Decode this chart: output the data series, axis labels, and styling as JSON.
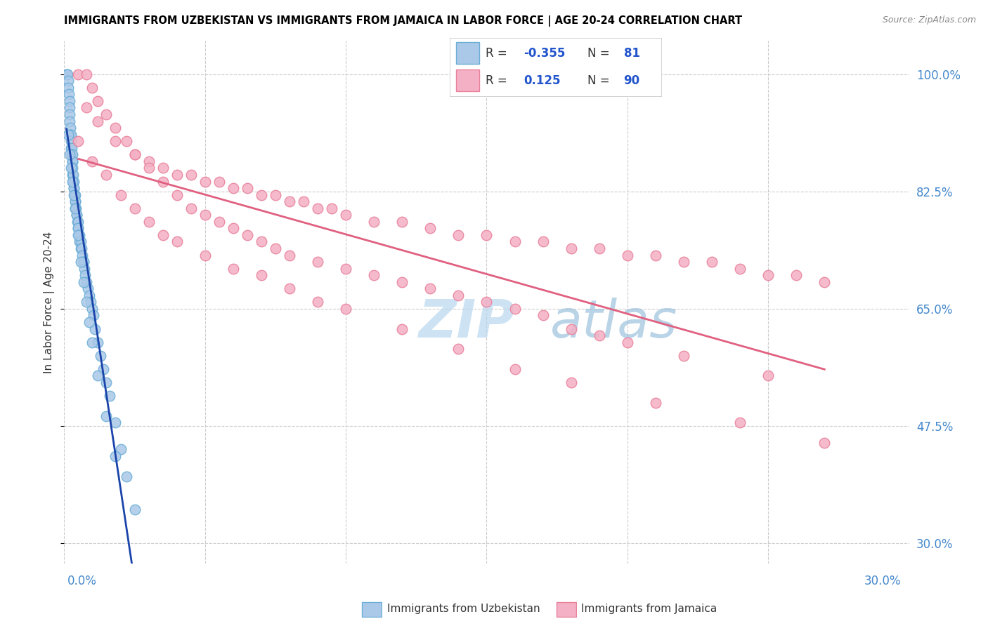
{
  "title": "IMMIGRANTS FROM UZBEKISTAN VS IMMIGRANTS FROM JAMAICA IN LABOR FORCE | AGE 20-24 CORRELATION CHART",
  "source": "Source: ZipAtlas.com",
  "ylabel_label": "In Labor Force | Age 20-24",
  "ylabel_ticks": [
    30.0,
    47.5,
    65.0,
    82.5,
    100.0
  ],
  "xlim": [
    0.0,
    30.0
  ],
  "ylim": [
    27.0,
    105.0
  ],
  "uzbekistan_color": "#aac8e8",
  "uzbekistan_edge": "#6aaed6",
  "jamaica_color": "#f4b0c4",
  "jamaica_edge": "#e8809a",
  "trend_uzbekistan_color": "#1a44aa",
  "trend_dashed_color": "#b0b8c8",
  "trend_jamaica_color": "#e06080",
  "watermark_color": "#daeef8",
  "uzbekistan_x": [
    0.08,
    0.1,
    0.12,
    0.14,
    0.15,
    0.16,
    0.18,
    0.18,
    0.2,
    0.2,
    0.22,
    0.22,
    0.24,
    0.25,
    0.25,
    0.26,
    0.27,
    0.28,
    0.28,
    0.3,
    0.3,
    0.3,
    0.32,
    0.32,
    0.33,
    0.35,
    0.35,
    0.36,
    0.38,
    0.38,
    0.4,
    0.4,
    0.42,
    0.44,
    0.45,
    0.46,
    0.48,
    0.5,
    0.5,
    0.52,
    0.55,
    0.55,
    0.58,
    0.6,
    0.62,
    0.65,
    0.68,
    0.7,
    0.72,
    0.75,
    0.8,
    0.85,
    0.9,
    0.95,
    1.0,
    1.05,
    1.1,
    1.2,
    1.3,
    1.4,
    1.5,
    1.6,
    1.8,
    2.0,
    2.2,
    2.5,
    0.15,
    0.2,
    0.25,
    0.3,
    0.35,
    0.4,
    0.5,
    0.6,
    0.7,
    0.8,
    0.9,
    1.0,
    1.2,
    1.5,
    1.8
  ],
  "uzbekistan_y": [
    100,
    100,
    100,
    99,
    98,
    97,
    96,
    95,
    94,
    93,
    92,
    91,
    91,
    90,
    89,
    89,
    88,
    88,
    87,
    87,
    86,
    85,
    85,
    84,
    84,
    83,
    83,
    82,
    82,
    81,
    81,
    80,
    80,
    79,
    79,
    78,
    78,
    77,
    77,
    76,
    76,
    75,
    75,
    74,
    74,
    73,
    72,
    72,
    71,
    70,
    69,
    68,
    67,
    66,
    65,
    64,
    62,
    60,
    58,
    56,
    54,
    52,
    48,
    44,
    40,
    35,
    91,
    88,
    86,
    84,
    82,
    80,
    76,
    72,
    69,
    66,
    63,
    60,
    55,
    49,
    43
  ],
  "jamaica_x": [
    0.5,
    0.8,
    1.0,
    1.2,
    1.5,
    1.8,
    2.2,
    2.5,
    3.0,
    3.5,
    4.0,
    4.5,
    5.0,
    5.5,
    6.0,
    6.5,
    7.0,
    7.5,
    8.0,
    8.5,
    9.0,
    9.5,
    10.0,
    11.0,
    12.0,
    13.0,
    14.0,
    15.0,
    16.0,
    17.0,
    18.0,
    19.0,
    20.0,
    21.0,
    22.0,
    23.0,
    24.0,
    25.0,
    26.0,
    27.0,
    0.8,
    1.2,
    1.8,
    2.5,
    3.0,
    3.5,
    4.0,
    4.5,
    5.0,
    5.5,
    6.0,
    6.5,
    7.0,
    7.5,
    8.0,
    9.0,
    10.0,
    11.0,
    12.0,
    13.0,
    14.0,
    15.0,
    16.0,
    17.0,
    18.0,
    19.0,
    20.0,
    22.0,
    25.0,
    0.5,
    1.0,
    1.5,
    2.0,
    2.5,
    3.0,
    3.5,
    4.0,
    5.0,
    6.0,
    7.0,
    8.0,
    9.0,
    10.0,
    12.0,
    14.0,
    16.0,
    18.0,
    21.0,
    24.0,
    27.0
  ],
  "jamaica_y": [
    100,
    100,
    98,
    96,
    94,
    92,
    90,
    88,
    87,
    86,
    85,
    85,
    84,
    84,
    83,
    83,
    82,
    82,
    81,
    81,
    80,
    80,
    79,
    78,
    78,
    77,
    76,
    76,
    75,
    75,
    74,
    74,
    73,
    73,
    72,
    72,
    71,
    70,
    70,
    69,
    95,
    93,
    90,
    88,
    86,
    84,
    82,
    80,
    79,
    78,
    77,
    76,
    75,
    74,
    73,
    72,
    71,
    70,
    69,
    68,
    67,
    66,
    65,
    64,
    62,
    61,
    60,
    58,
    55,
    90,
    87,
    85,
    82,
    80,
    78,
    76,
    75,
    73,
    71,
    70,
    68,
    66,
    65,
    62,
    59,
    56,
    54,
    51,
    48,
    45
  ]
}
